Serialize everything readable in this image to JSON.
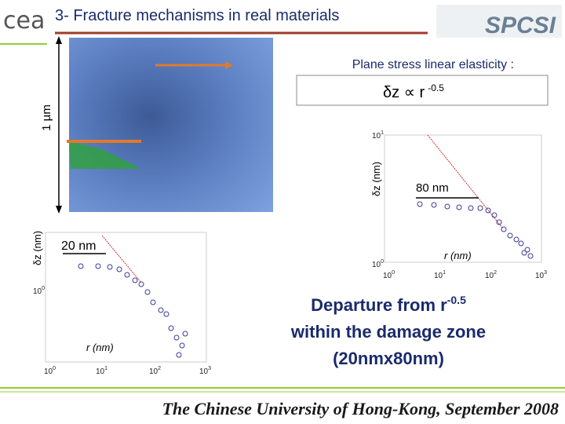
{
  "header": {
    "logo": "cea",
    "title": "3- Fracture mechanisms in real materials",
    "brand": "SPCSI"
  },
  "image": {
    "scale_label": "1 µm"
  },
  "model": {
    "caption": "Plane stress linear elasticity :",
    "formula": "δz ∝ r",
    "exponent": "-0.5"
  },
  "plots": [
    {
      "y_label": "δz (nm)",
      "x_label": "r (nm)",
      "annotation": "80 nm",
      "y_ticks": [
        {
          "base": "10",
          "exp": "1"
        },
        {
          "base": "10",
          "exp": "0"
        }
      ],
      "x_ticks": [
        {
          "base": "10",
          "exp": "0"
        },
        {
          "base": "10",
          "exp": "1"
        },
        {
          "base": "10",
          "exp": "2"
        },
        {
          "base": "10",
          "exp": "3"
        }
      ]
    },
    {
      "y_label": "δz (nm)",
      "x_label": "r (nm)",
      "annotation": "20 nm",
      "y_ticks": [
        {
          "base": "10",
          "exp": "0"
        }
      ],
      "x_ticks": [
        {
          "base": "10",
          "exp": "0"
        },
        {
          "base": "10",
          "exp": "1"
        },
        {
          "base": "10",
          "exp": "2"
        },
        {
          "base": "10",
          "exp": "3"
        }
      ]
    }
  ],
  "conclusion": {
    "line1": "Departure from r",
    "exponent": "-0.5",
    "line2": "within the damage zone",
    "line3": "(20nmx80nm)"
  },
  "footer": "The Chinese University of Hong-Kong, September 2008"
}
